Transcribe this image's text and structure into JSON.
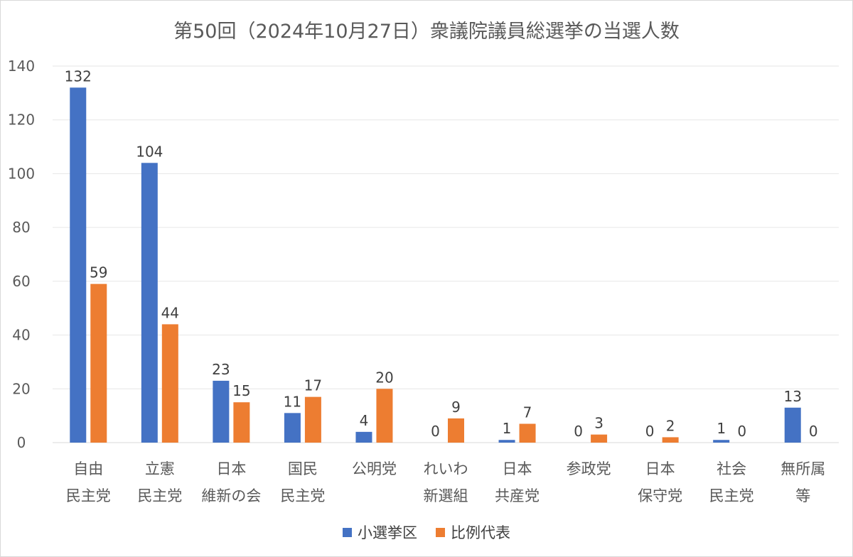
{
  "chart_data": {
    "type": "bar",
    "title": "第50回（2024年10月27日）衆議院議員総選挙の当選人数",
    "xlabel": "",
    "ylabel": "",
    "ylim": [
      0,
      140
    ],
    "yticks": [
      0,
      20,
      40,
      60,
      80,
      100,
      120,
      140
    ],
    "grid": true,
    "legend_position": "bottom",
    "categories": [
      [
        "自由",
        "民主党"
      ],
      [
        "立憲",
        "民主党"
      ],
      [
        "日本",
        "維新の会"
      ],
      [
        "国民",
        "民主党"
      ],
      [
        "公明党"
      ],
      [
        "れいわ",
        "新選組"
      ],
      [
        "日本",
        "共産党"
      ],
      [
        "参政党"
      ],
      [
        "日本",
        "保守党"
      ],
      [
        "社会",
        "民主党"
      ],
      [
        "無所属",
        "等"
      ]
    ],
    "series": [
      {
        "name": "小選挙区",
        "color": "#4472c4",
        "values": [
          132,
          104,
          23,
          11,
          4,
          0,
          1,
          0,
          0,
          1,
          13
        ]
      },
      {
        "name": "比例代表",
        "color": "#ed7d31",
        "values": [
          59,
          44,
          15,
          17,
          20,
          9,
          7,
          3,
          2,
          0,
          0
        ]
      }
    ]
  }
}
